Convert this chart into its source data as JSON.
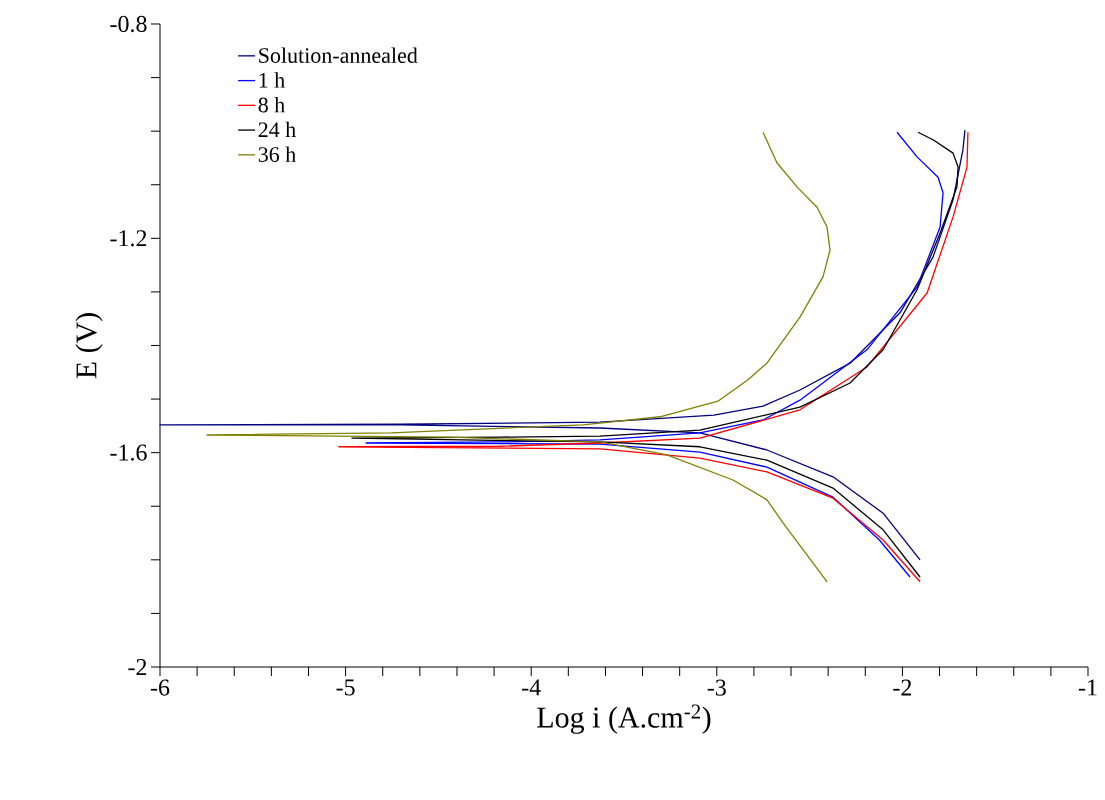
{
  "chart_data": {
    "type": "line",
    "xlabel": "Log i (A.cm$^{-2}$)",
    "ylabel": "E (V)",
    "xlim": [
      -6,
      -1
    ],
    "ylim": [
      -2,
      -0.8
    ],
    "xticks": [
      -6,
      {
        "value": -5.8,
        "label": null
      },
      {
        "value": -5.6,
        "label": null
      },
      {
        "value": -5.4,
        "label": null
      },
      {
        "value": -5.2,
        "label": null
      },
      -5,
      {
        "value": -4.8,
        "label": null
      },
      {
        "value": -4.6,
        "label": null
      },
      {
        "value": -4.4,
        "label": null
      },
      {
        "value": -4.2,
        "label": null
      },
      -4,
      {
        "value": -3.8,
        "label": null
      },
      {
        "value": -3.6,
        "label": null
      },
      {
        "value": -3.4,
        "label": null
      },
      {
        "value": -3.2,
        "label": null
      },
      -3,
      {
        "value": -2.8,
        "label": null
      },
      {
        "value": -2.6,
        "label": null
      },
      {
        "value": -2.4,
        "label": null
      },
      {
        "value": -2.2,
        "label": null
      },
      -2,
      {
        "value": -1.8,
        "label": null
      },
      {
        "value": -1.6,
        "label": null
      },
      {
        "value": -1.4,
        "label": null
      },
      {
        "value": -1.2,
        "label": null
      },
      -1
    ],
    "yticks": [
      -2,
      {
        "value": -1.9,
        "label": null
      },
      {
        "value": -1.8,
        "label": null
      },
      {
        "value": -1.7,
        "label": null
      },
      -1.6,
      {
        "value": -1.5,
        "label": null
      },
      {
        "value": -1.4,
        "label": null
      },
      {
        "value": -1.3,
        "label": null
      },
      -1.2,
      {
        "value": -1.1,
        "label": null
      },
      {
        "value": -1.0,
        "label": null
      },
      {
        "value": -0.9,
        "label": null
      },
      -0.8
    ],
    "grid": false,
    "legend": "top left",
    "marker": "none",
    "line_style": "solid",
    "series": [
      {
        "name": "Solution-annealed",
        "color": "#000080",
        "x": [
          -1.905,
          -2.104,
          -2.374,
          -2.73,
          -3.091,
          -3.629,
          -4.707,
          -6.0,
          -4.707,
          -3.629,
          -3.015,
          -2.751,
          -2.552,
          -2.282,
          -2.013,
          -1.835,
          -1.727,
          -1.674,
          -1.663
        ],
        "values": [
          -1.8,
          -1.713,
          -1.645,
          -1.595,
          -1.563,
          -1.554,
          -1.548,
          -1.548,
          -1.547,
          -1.543,
          -1.53,
          -1.513,
          -1.483,
          -1.433,
          -1.339,
          -1.235,
          -1.128,
          -1.035,
          -0.998
        ]
      },
      {
        "name": "1 h",
        "color": "#0000ff",
        "x": [
          -1.959,
          -2.124,
          -2.374,
          -2.73,
          -3.091,
          -3.629,
          -4.89,
          -4.168,
          -3.629,
          -3.091,
          -2.751,
          -2.552,
          -2.191,
          -1.921,
          -1.797,
          -1.781,
          -1.808,
          -1.921,
          -2.029
        ],
        "values": [
          -1.832,
          -1.763,
          -1.683,
          -1.627,
          -1.599,
          -1.584,
          -1.582,
          -1.58,
          -1.576,
          -1.563,
          -1.539,
          -1.502,
          -1.408,
          -1.291,
          -1.179,
          -1.115,
          -1.086,
          -1.048,
          -1.002
        ]
      },
      {
        "name": "8 h",
        "color": "#ff0000",
        "x": [
          -1.905,
          -2.104,
          -2.374,
          -2.73,
          -3.091,
          -3.629,
          -5.036,
          -4.168,
          -3.629,
          -3.091,
          -2.552,
          -2.191,
          -1.867,
          -1.727,
          -1.652,
          -1.647
        ],
        "values": [
          -1.841,
          -1.763,
          -1.685,
          -1.636,
          -1.61,
          -1.593,
          -1.589,
          -1.588,
          -1.582,
          -1.573,
          -1.52,
          -1.44,
          -1.302,
          -1.16,
          -1.067,
          -1.002
        ]
      },
      {
        "name": "24 h",
        "color": "#000000",
        "x": [
          -1.905,
          -2.104,
          -2.374,
          -2.73,
          -3.091,
          -3.629,
          -4.966,
          -4.168,
          -3.629,
          -3.091,
          -2.552,
          -2.282,
          -2.104,
          -1.921,
          -1.797,
          -1.706,
          -1.7,
          -1.727,
          -1.835,
          -1.916
        ],
        "values": [
          -1.832,
          -1.744,
          -1.666,
          -1.614,
          -1.589,
          -1.58,
          -1.573,
          -1.571,
          -1.569,
          -1.558,
          -1.515,
          -1.47,
          -1.408,
          -1.296,
          -1.19,
          -1.104,
          -1.067,
          -1.041,
          -1.016,
          -1.002
        ]
      },
      {
        "name": "36 h",
        "color": "#808000",
        "x": [
          -2.406,
          -2.643,
          -2.73,
          -2.913,
          -3.268,
          -3.629,
          -4.438,
          -5.747,
          -4.755,
          -3.721,
          -3.306,
          -2.994,
          -2.832,
          -2.73,
          -2.552,
          -2.428,
          -2.39,
          -2.406,
          -2.46,
          -2.568,
          -2.676,
          -2.751
        ],
        "values": [
          -1.841,
          -1.731,
          -1.688,
          -1.651,
          -1.604,
          -1.58,
          -1.571,
          -1.567,
          -1.563,
          -1.548,
          -1.533,
          -1.504,
          -1.464,
          -1.433,
          -1.347,
          -1.272,
          -1.222,
          -1.179,
          -1.142,
          -1.104,
          -1.059,
          -1.002
        ]
      }
    ]
  }
}
